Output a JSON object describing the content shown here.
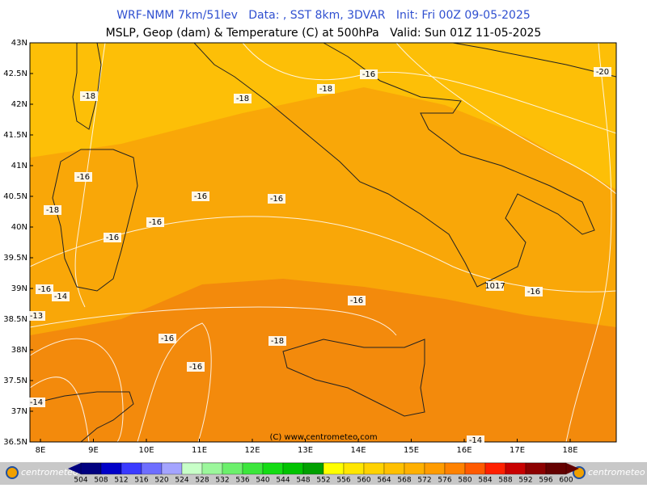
{
  "header": {
    "line1": "WRF-NMM 7km/51lev   Data: , SST 8km, 3DVAR   Init: Fri 00Z 09-05-2025",
    "line2": "MSLP, Geop (dam) & Temperature (C) at 500hPa   Valid: Sun 01Z 11-05-2025"
  },
  "map": {
    "lat_labels": [
      "43N",
      "42.5N",
      "42N",
      "41.5N",
      "41N",
      "40.5N",
      "40N",
      "39.5N",
      "39N",
      "38.5N",
      "38N",
      "37.5N",
      "37N",
      "36.5N"
    ],
    "lon_labels": [
      "8E",
      "9E",
      "10E",
      "11E",
      "12E",
      "13E",
      "14E",
      "15E",
      "16E",
      "17E",
      "18E"
    ],
    "contour_labels": [
      "-18",
      "-18",
      "-18",
      "-16",
      "-20",
      "-16",
      "-18",
      "-16",
      "-16",
      "-16",
      "-16",
      "-16",
      "-14",
      "-13",
      "1017",
      "-16",
      "-16",
      "-16",
      "-18",
      "-16",
      "-14",
      "-14"
    ],
    "copyright": "(C) www.centrometeo.com"
  },
  "colorbar": {
    "ticks": [
      504,
      508,
      512,
      516,
      520,
      524,
      528,
      532,
      536,
      540,
      544,
      548,
      552,
      556,
      560,
      564,
      568,
      572,
      576,
      580,
      584,
      588,
      592,
      596,
      600
    ],
    "colors": [
      "#00007f",
      "#0000c8",
      "#3a3aff",
      "#6e6eff",
      "#a4a4ff",
      "#c8ffc8",
      "#9cf79c",
      "#6cf06c",
      "#3ce63c",
      "#14dc14",
      "#00c300",
      "#00a000",
      "#ffff00",
      "#ffe600",
      "#ffd200",
      "#ffc000",
      "#ffb000",
      "#ff9c00",
      "#ff8200",
      "#ff5a00",
      "#ff2000",
      "#c80000",
      "#8c0000",
      "#640000"
    ]
  },
  "footer": {
    "logo_left": "centrometeo",
    "logo_right": "centrometeo"
  }
}
